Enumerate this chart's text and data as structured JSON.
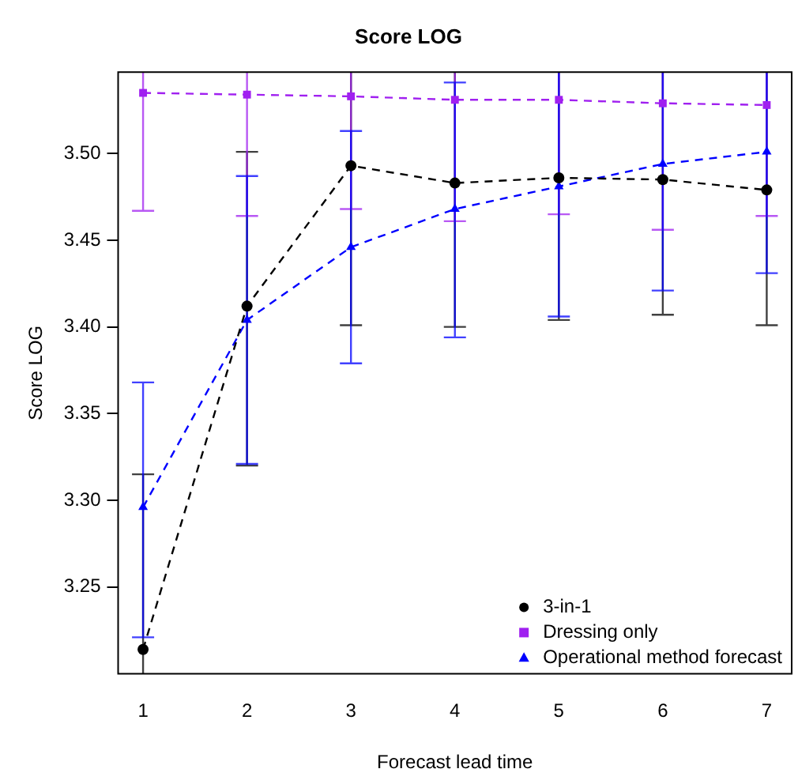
{
  "chart_data": {
    "type": "line",
    "title": "Score LOG",
    "xlabel": "Forecast lead time",
    "ylabel": "Score LOG",
    "x": [
      1,
      2,
      3,
      4,
      5,
      6,
      7
    ],
    "xlim": [
      0.76,
      7.24
    ],
    "xticks": [
      1,
      2,
      3,
      4,
      5,
      6,
      7
    ],
    "ylim": [
      3.2,
      3.547
    ],
    "yticks": [
      3.25,
      {
        "value": 3.3,
        "label": "3.30"
      },
      3.35,
      {
        "value": 3.4,
        "label": "3.40"
      },
      3.45,
      {
        "value": 3.5,
        "label": "3.50"
      }
    ],
    "grid": false,
    "legend": "bottom right",
    "line_style": "dashed",
    "series": [
      {
        "name": "3-in-1",
        "color": "#000000",
        "marker": "circle",
        "values": [
          3.214,
          3.412,
          3.493,
          3.483,
          3.486,
          3.485,
          3.479
        ],
        "errors": [
          [
            3.2,
            3.315
          ],
          [
            3.32,
            3.501
          ],
          [
            3.401,
            3.547
          ],
          [
            3.4,
            3.547
          ],
          [
            3.404,
            3.547
          ],
          [
            3.407,
            3.547
          ],
          [
            3.401,
            3.547
          ]
        ]
      },
      {
        "name": "Dressing only",
        "color": "#a020f0",
        "marker": "square",
        "values": [
          3.535,
          3.534,
          3.533,
          3.531,
          3.531,
          3.529,
          3.528
        ],
        "errors": [
          [
            3.467,
            3.547
          ],
          [
            3.464,
            3.547
          ],
          [
            3.468,
            3.547
          ],
          [
            3.461,
            3.547
          ],
          [
            3.465,
            3.547
          ],
          [
            3.456,
            3.547
          ],
          [
            3.464,
            3.547
          ]
        ]
      },
      {
        "name": "Operational method forecast",
        "color": "#0000ff",
        "marker": "triangle",
        "values": [
          3.296,
          3.404,
          3.446,
          3.468,
          3.481,
          3.494,
          3.501
        ],
        "errors": [
          [
            3.221,
            3.368
          ],
          [
            3.321,
            3.487
          ],
          [
            3.379,
            3.513
          ],
          [
            3.394,
            3.541
          ],
          [
            3.406,
            3.547
          ],
          [
            3.421,
            3.547
          ],
          [
            3.431,
            3.547
          ]
        ]
      }
    ]
  }
}
